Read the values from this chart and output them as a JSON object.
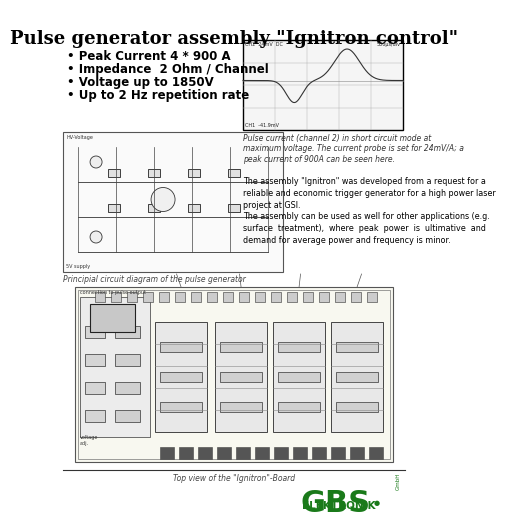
{
  "title": "Pulse generator assembly \"Ignitron control\"",
  "title_fontsize": 13,
  "title_fontweight": "bold",
  "background_color": "#ffffff",
  "bullet_points": [
    "Peak Current 4 * 900 A",
    "Impedance  2 Ohm / Channel",
    "Voltage up to 1850V",
    "Up to 2 Hz repetition rate"
  ],
  "bullet_fontsize": 8.5,
  "bullet_fontweight": "bold",
  "circuit_caption": "Principial circuit diagram of the pulse generator",
  "oscilloscope_caption": "Pulse current (channel 2) in short circuit mode at\nmaximum voltage. The current probe is set for 24mV/A; a\npeak current of 900A can be seen here.",
  "description_text": "The assembly \"Ignitron\" was developed from a request for a\nreliable and economic trigger generator for a high power laser\nproject at GSI.\nThe assembly can be used as well for other applications (e.g.\nsurface  treatment),  where  peak  power  is  ultimative  and\ndemand for average power and frequency is minor.",
  "bottom_caption": "Top view of the \"Ignitron\"-Board",
  "gbs_text": "GBS",
  "gbs_sub": "ELEKTRONIK",
  "gbs_green": "#1a7a1a",
  "text_color": "#000000",
  "caption_color": "#444444",
  "line_color": "#000000"
}
